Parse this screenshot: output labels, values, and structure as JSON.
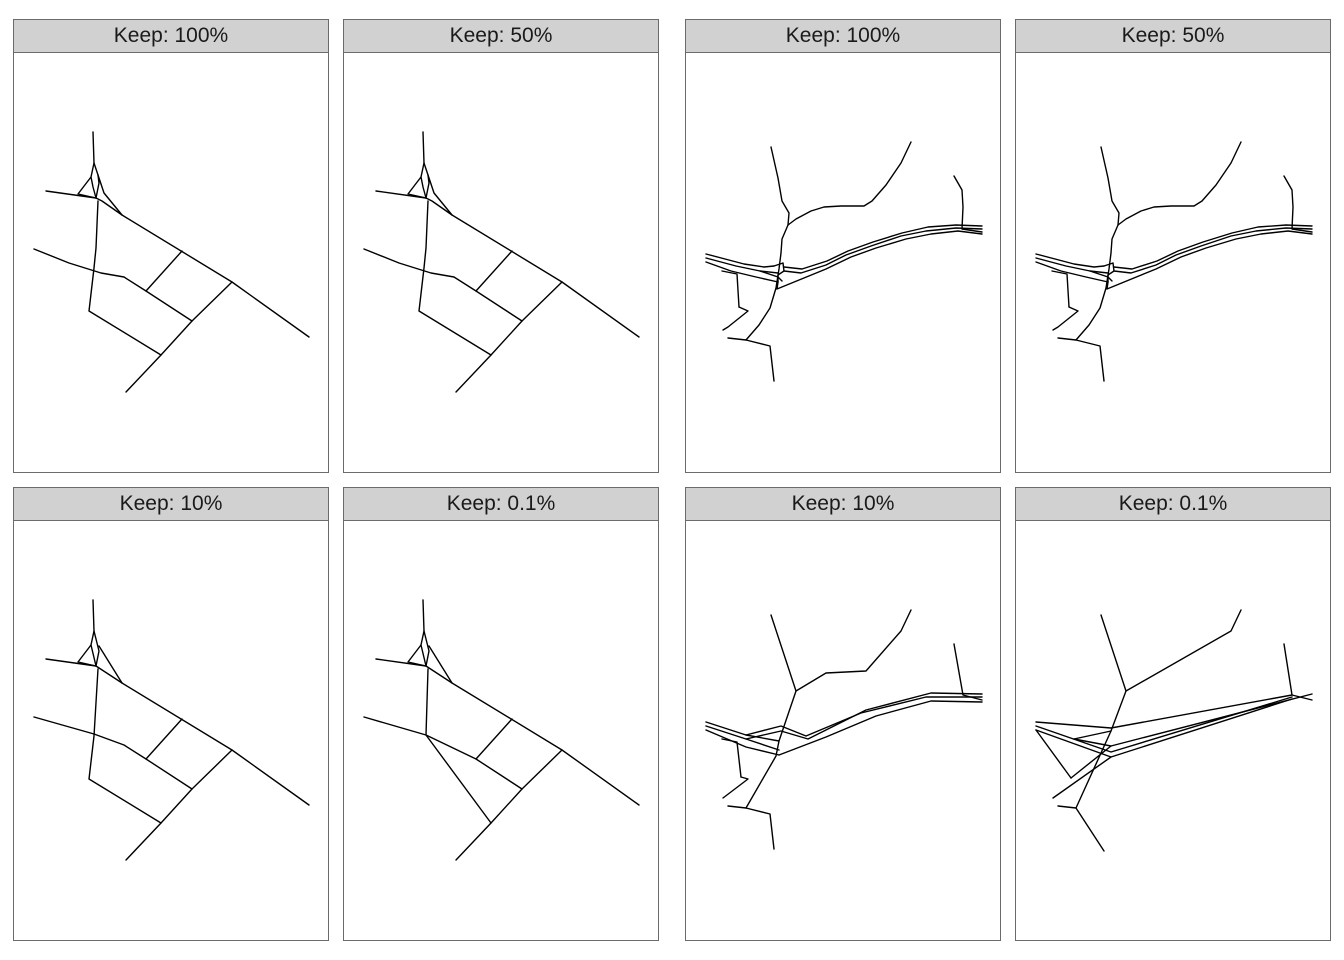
{
  "figure": {
    "panels": [
      {
        "title": "Keep: 100%"
      },
      {
        "title": "Keep: 50%"
      },
      {
        "title": "Keep: 100%"
      },
      {
        "title": "Keep: 50%"
      },
      {
        "title": "Keep: 10%"
      },
      {
        "title": "Keep: 0.1%"
      },
      {
        "title": "Keep: 10%"
      },
      {
        "title": "Keep: 0.1%"
      }
    ],
    "line_color": "#000000",
    "strip_color": "#d1d1d1"
  }
}
